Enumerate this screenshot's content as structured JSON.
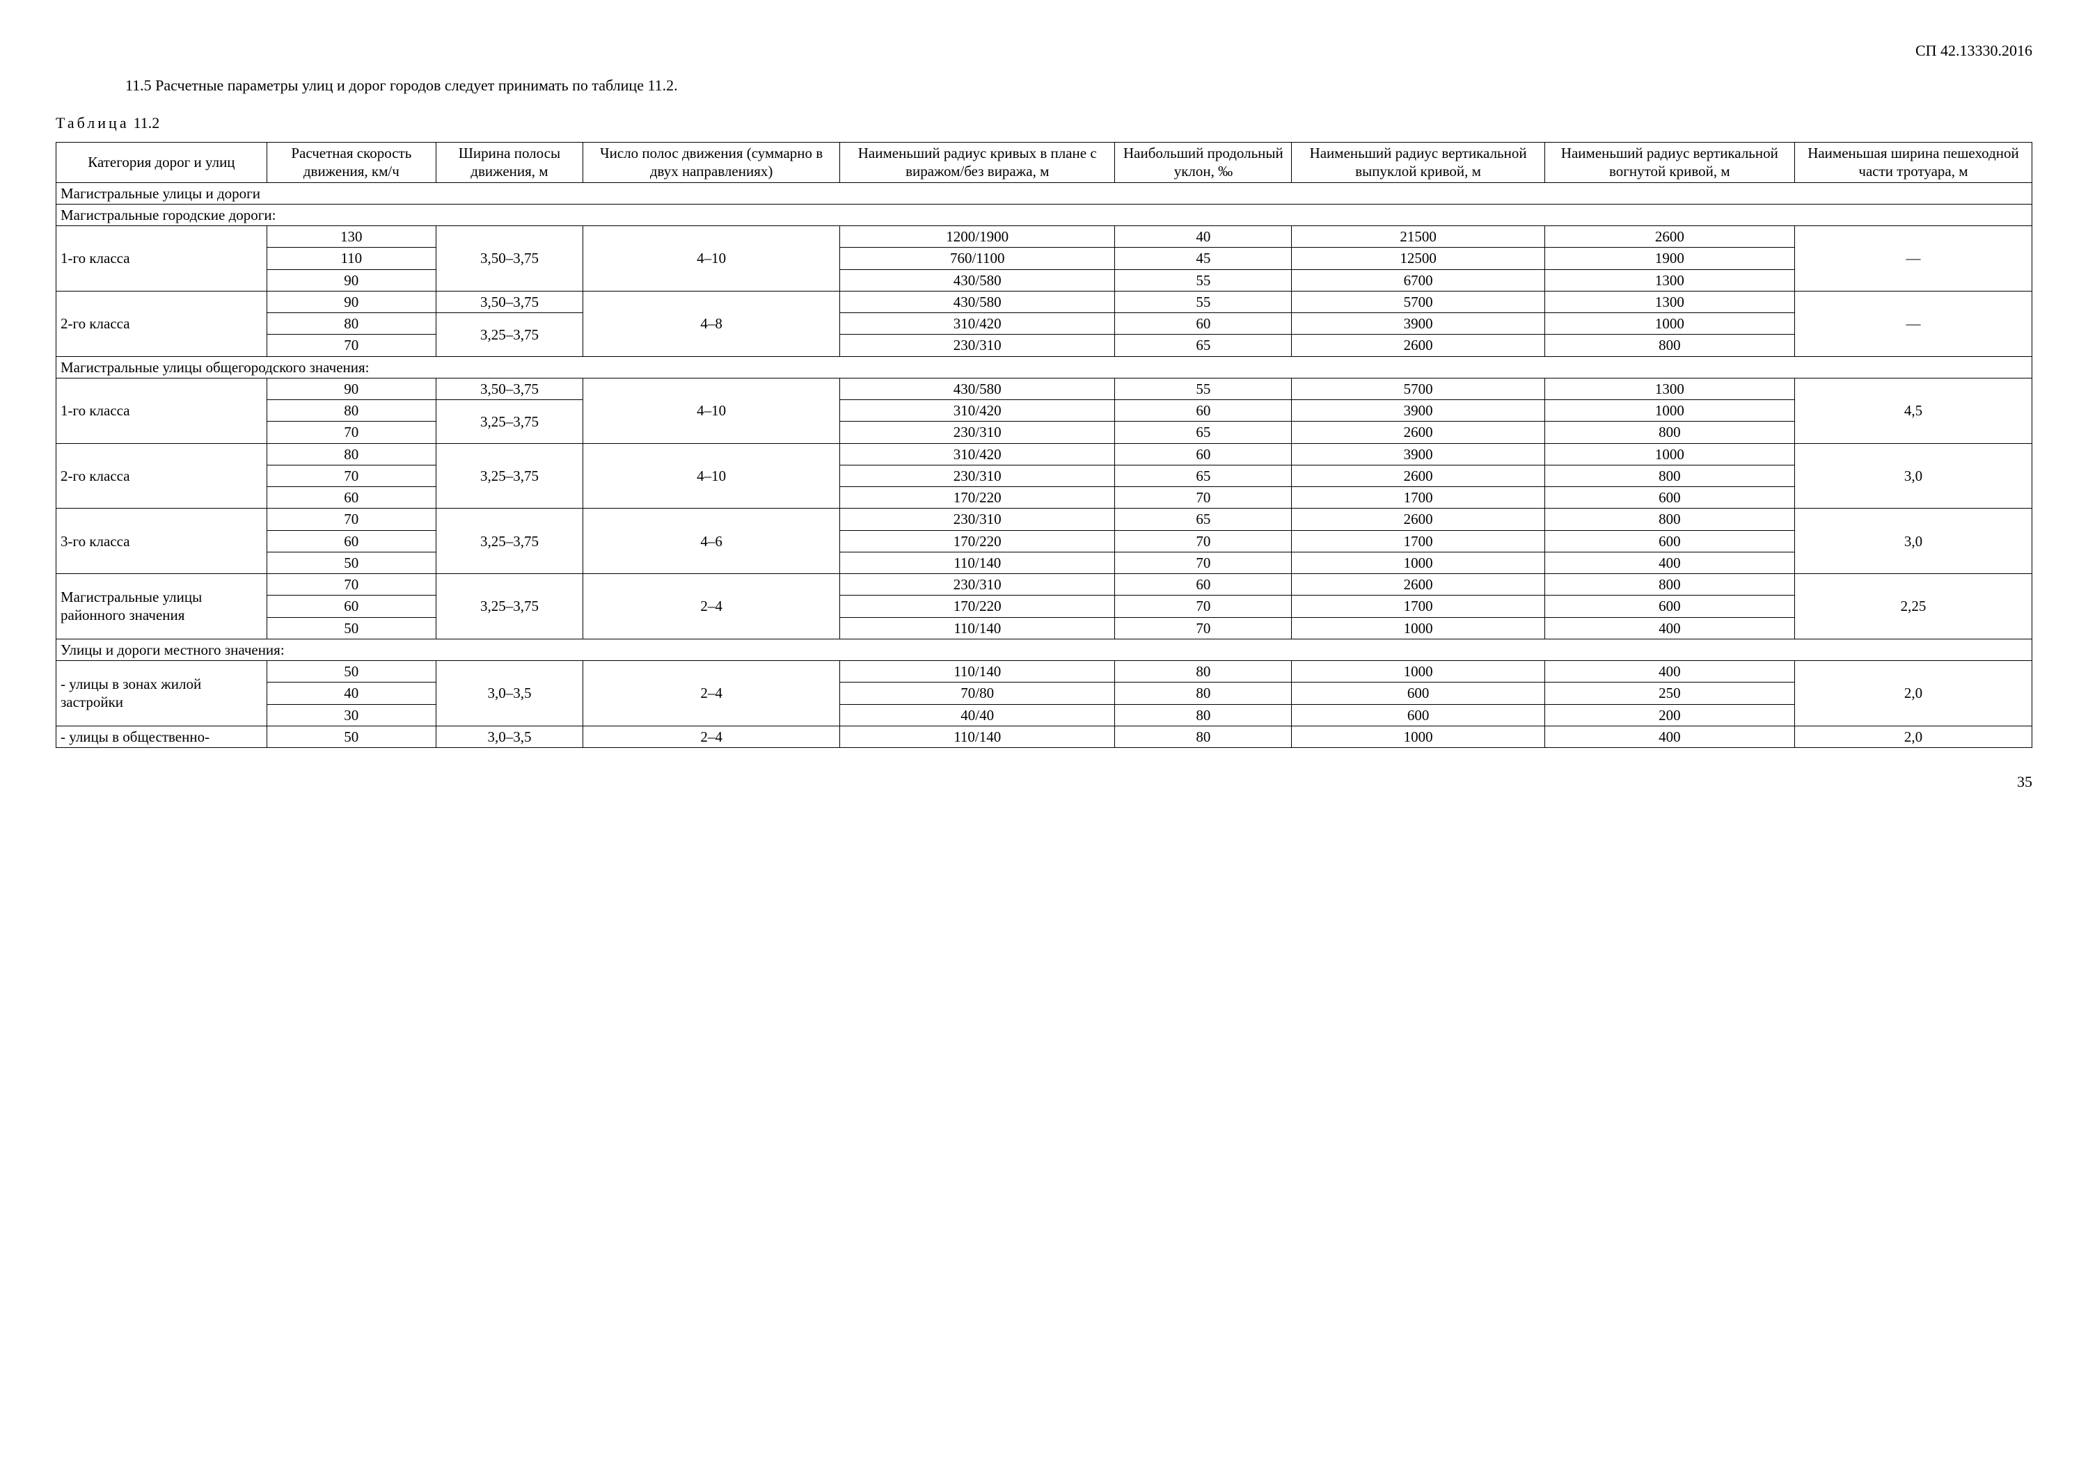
{
  "doc_code": "СП 42.13330.2016",
  "intro": "11.5 Расчетные параметры улиц и дорог городов следует принимать по таблице 11.2.",
  "table_word": "Таблица",
  "table_num": "11.2",
  "page_number": "35",
  "dash": "—",
  "headers": {
    "c1": "Категория дорог и улиц",
    "c2": "Расчетная скорость движения, км/ч",
    "c3": "Ширина полосы движения, м",
    "c4": "Число полос движения (суммарно в двух направлениях)",
    "c5": "Наименьший радиус кривых в плане с виражом/без виража, м",
    "c6": "Наибольший продольный уклон, ‰",
    "c7": "Наименьший радиус вертикальной выпуклой кривой, м",
    "c8": "Наименьший радиус вертикальной вогнутой кривой, м",
    "c9": "Наименьшая ширина пешеходной части тротуара, м"
  },
  "section1": "Магистральные улицы и дороги",
  "section2": "Магистральные городские дороги:",
  "section3": "Магистральные улицы общегородского значения:",
  "section4": "Улицы и дороги местного значения:",
  "g1": {
    "label": "1-го класса",
    "width": "3,50–3,75",
    "lanes": "4–10",
    "r1": {
      "speed": "130",
      "radius": "1200/1900",
      "slope": "40",
      "convex": "21500",
      "concave": "2600"
    },
    "r2": {
      "speed": "110",
      "radius": "760/1100",
      "slope": "45",
      "convex": "12500",
      "concave": "1900"
    },
    "r3": {
      "speed": "90",
      "radius": "430/580",
      "slope": "55",
      "convex": "6700",
      "concave": "1300"
    }
  },
  "g2": {
    "label": "2-го класса",
    "width1": "3,50–3,75",
    "width2": "3,25–3,75",
    "lanes": "4–8",
    "r1": {
      "speed": "90",
      "radius": "430/580",
      "slope": "55",
      "convex": "5700",
      "concave": "1300"
    },
    "r2": {
      "speed": "80",
      "radius": "310/420",
      "slope": "60",
      "convex": "3900",
      "concave": "1000"
    },
    "r3": {
      "speed": "70",
      "radius": "230/310",
      "slope": "65",
      "convex": "2600",
      "concave": "800"
    }
  },
  "g3": {
    "label": "1-го класса",
    "width1": "3,50–3,75",
    "width2": "3,25–3,75",
    "lanes": "4–10",
    "ped": "4,5",
    "r1": {
      "speed": "90",
      "radius": "430/580",
      "slope": "55",
      "convex": "5700",
      "concave": "1300"
    },
    "r2": {
      "speed": "80",
      "radius": "310/420",
      "slope": "60",
      "convex": "3900",
      "concave": "1000"
    },
    "r3": {
      "speed": "70",
      "radius": "230/310",
      "slope": "65",
      "convex": "2600",
      "concave": "800"
    }
  },
  "g4": {
    "label": "2-го класса",
    "width": "3,25–3,75",
    "lanes": "4–10",
    "ped": "3,0",
    "r1": {
      "speed": "80",
      "radius": "310/420",
      "slope": "60",
      "convex": "3900",
      "concave": "1000"
    },
    "r2": {
      "speed": "70",
      "radius": "230/310",
      "slope": "65",
      "convex": "2600",
      "concave": "800"
    },
    "r3": {
      "speed": "60",
      "radius": "170/220",
      "slope": "70",
      "convex": "1700",
      "concave": "600"
    }
  },
  "g5": {
    "label": "3-го класса",
    "width": "3,25–3,75",
    "lanes": "4–6",
    "ped": "3,0",
    "r1": {
      "speed": "70",
      "radius": "230/310",
      "slope": "65",
      "convex": "2600",
      "concave": "800"
    },
    "r2": {
      "speed": "60",
      "radius": "170/220",
      "slope": "70",
      "convex": "1700",
      "concave": "600"
    },
    "r3": {
      "speed": "50",
      "radius": "110/140",
      "slope": "70",
      "convex": "1000",
      "concave": "400"
    }
  },
  "g6": {
    "label": "Магистральные улицы районного значения",
    "width": "3,25–3,75",
    "lanes": "2–4",
    "ped": "2,25",
    "r1": {
      "speed": "70",
      "radius": "230/310",
      "slope": "60",
      "convex": "2600",
      "concave": "800"
    },
    "r2": {
      "speed": "60",
      "radius": "170/220",
      "slope": "70",
      "convex": "1700",
      "concave": "600"
    },
    "r3": {
      "speed": "50",
      "radius": "110/140",
      "slope": "70",
      "convex": "1000",
      "concave": "400"
    }
  },
  "g7": {
    "label": "- улицы в зонах жилой застройки",
    "width": "3,0–3,5",
    "lanes": "2–4",
    "ped": "2,0",
    "r1": {
      "speed": "50",
      "radius": "110/140",
      "slope": "80",
      "convex": "1000",
      "concave": "400"
    },
    "r2": {
      "speed": "40",
      "radius": "70/80",
      "slope": "80",
      "convex": "600",
      "concave": "250"
    },
    "r3": {
      "speed": "30",
      "radius": "40/40",
      "slope": "80",
      "convex": "600",
      "concave": "200"
    }
  },
  "g8": {
    "label": "- улицы в общественно-",
    "width": "3,0–3,5",
    "lanes": "2–4",
    "ped": "2,0",
    "r1": {
      "speed": "50",
      "radius": "110/140",
      "slope": "80",
      "convex": "1000",
      "concave": "400"
    }
  }
}
